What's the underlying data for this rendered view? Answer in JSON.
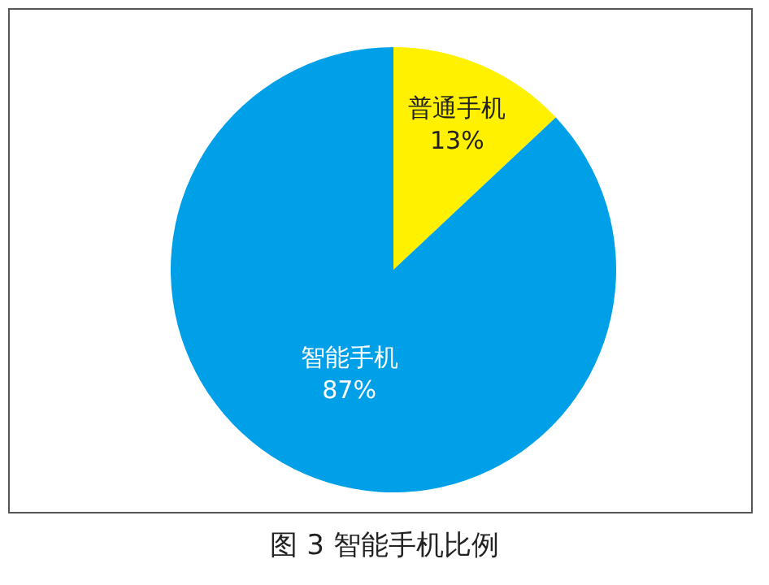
{
  "chart_data": {
    "type": "pie",
    "title": "图 3 智能手机比例",
    "categories": [
      "普通手机",
      "智能手机"
    ],
    "values": [
      13,
      87
    ],
    "value_labels": [
      "13%",
      "87%"
    ],
    "colors": [
      "#fff100",
      "#00a0e9"
    ]
  }
}
